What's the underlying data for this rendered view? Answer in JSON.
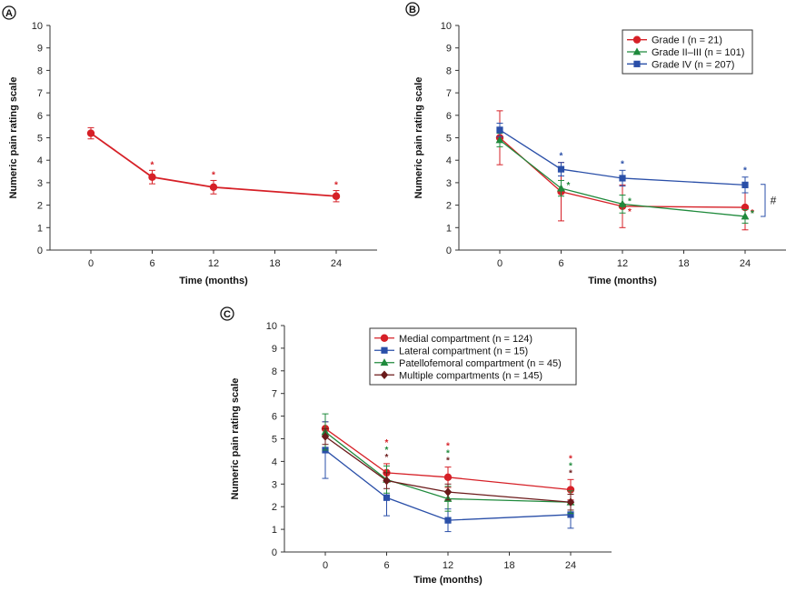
{
  "figure": {
    "panel_labels": [
      "A",
      "B",
      "C"
    ]
  },
  "chart_data": [
    {
      "panel": "A",
      "type": "line",
      "title": "",
      "xlabel": "Time (months)",
      "ylabel": "Numeric pain rating scale",
      "xticks": [
        0,
        6,
        12,
        18,
        24
      ],
      "xlim": [
        -4,
        28
      ],
      "ylim": [
        0,
        10
      ],
      "yticks": [
        0,
        1,
        2,
        3,
        4,
        5,
        6,
        7,
        8,
        9,
        10
      ],
      "x": [
        0,
        6,
        12,
        24
      ],
      "series": [
        {
          "name": "All",
          "color": "#d62027",
          "marker": "circle",
          "values": [
            5.2,
            3.25,
            2.8,
            2.4
          ],
          "errors": [
            0.25,
            0.3,
            0.3,
            0.25
          ],
          "stars": [
            "",
            "*",
            "*",
            "*"
          ]
        }
      ]
    },
    {
      "panel": "B",
      "type": "line",
      "title": "",
      "xlabel": "Time (months)",
      "ylabel": "Numeric pain rating scale",
      "xticks": [
        0,
        6,
        12,
        18,
        24
      ],
      "xlim": [
        -4,
        28
      ],
      "ylim": [
        0,
        10
      ],
      "yticks": [
        0,
        1,
        2,
        3,
        4,
        5,
        6,
        7,
        8,
        9,
        10
      ],
      "x": [
        0,
        6,
        12,
        24
      ],
      "legend_position": "top-right",
      "bracket_label": "#",
      "series": [
        {
          "name": "Grade I (n = 21)",
          "color": "#d62027",
          "marker": "circle",
          "values": [
            5.0,
            2.6,
            1.95,
            1.9
          ],
          "errors": [
            1.2,
            1.3,
            0.95,
            1.0
          ],
          "stars": [
            "",
            "",
            "*",
            "*"
          ]
        },
        {
          "name": "Grade II–III (n = 101)",
          "color": "#1f8a3c",
          "marker": "triangle",
          "values": [
            4.9,
            2.75,
            2.05,
            1.5
          ],
          "errors": [
            0.3,
            0.35,
            0.4,
            0.3
          ],
          "stars": [
            "",
            "*",
            "*",
            "*"
          ]
        },
        {
          "name": "Grade IV (n = 207)",
          "color": "#2a4fa8",
          "marker": "square",
          "values": [
            5.35,
            3.6,
            3.2,
            2.9
          ],
          "errors": [
            0.3,
            0.3,
            0.35,
            0.35
          ],
          "stars": [
            "",
            "*",
            "*",
            "*"
          ]
        }
      ]
    },
    {
      "panel": "C",
      "type": "line",
      "title": "",
      "xlabel": "Time (months)",
      "ylabel": "Numeric pain rating scale",
      "xticks": [
        0,
        6,
        12,
        18,
        24
      ],
      "xlim": [
        -4,
        28
      ],
      "ylim": [
        0,
        10
      ],
      "yticks": [
        0,
        1,
        2,
        3,
        4,
        5,
        6,
        7,
        8,
        9,
        10
      ],
      "x": [
        0,
        6,
        12,
        24
      ],
      "legend_position": "top-right",
      "series": [
        {
          "name": "Medial compartment (n = 124)",
          "color": "#d62027",
          "marker": "circle",
          "values": [
            5.45,
            3.5,
            3.3,
            2.75
          ],
          "errors": [
            0.3,
            0.4,
            0.45,
            0.45
          ],
          "stars": [
            "",
            "*",
            "*",
            "*"
          ]
        },
        {
          "name": "Lateral compartment (n = 15)",
          "color": "#2a4fa8",
          "marker": "square",
          "values": [
            4.5,
            2.4,
            1.4,
            1.65
          ],
          "errors": [
            1.25,
            0.8,
            0.5,
            0.6
          ],
          "stars": [
            "",
            "",
            "",
            ""
          ]
        },
        {
          "name": "Patellofemoral compartment (n = 45)",
          "color": "#1f8a3c",
          "marker": "triangle",
          "values": [
            5.3,
            3.2,
            2.35,
            2.2
          ],
          "errors": [
            0.8,
            0.6,
            0.55,
            0.5
          ],
          "stars": [
            "",
            "*",
            "*",
            "*"
          ]
        },
        {
          "name": "Multiple compartments (n = 145)",
          "color": "#6b1a1a",
          "marker": "diamond",
          "values": [
            5.1,
            3.15,
            2.65,
            2.2
          ],
          "errors": [
            0.35,
            0.35,
            0.35,
            0.35
          ],
          "stars": [
            "",
            "*",
            "*",
            "*"
          ]
        }
      ]
    }
  ]
}
